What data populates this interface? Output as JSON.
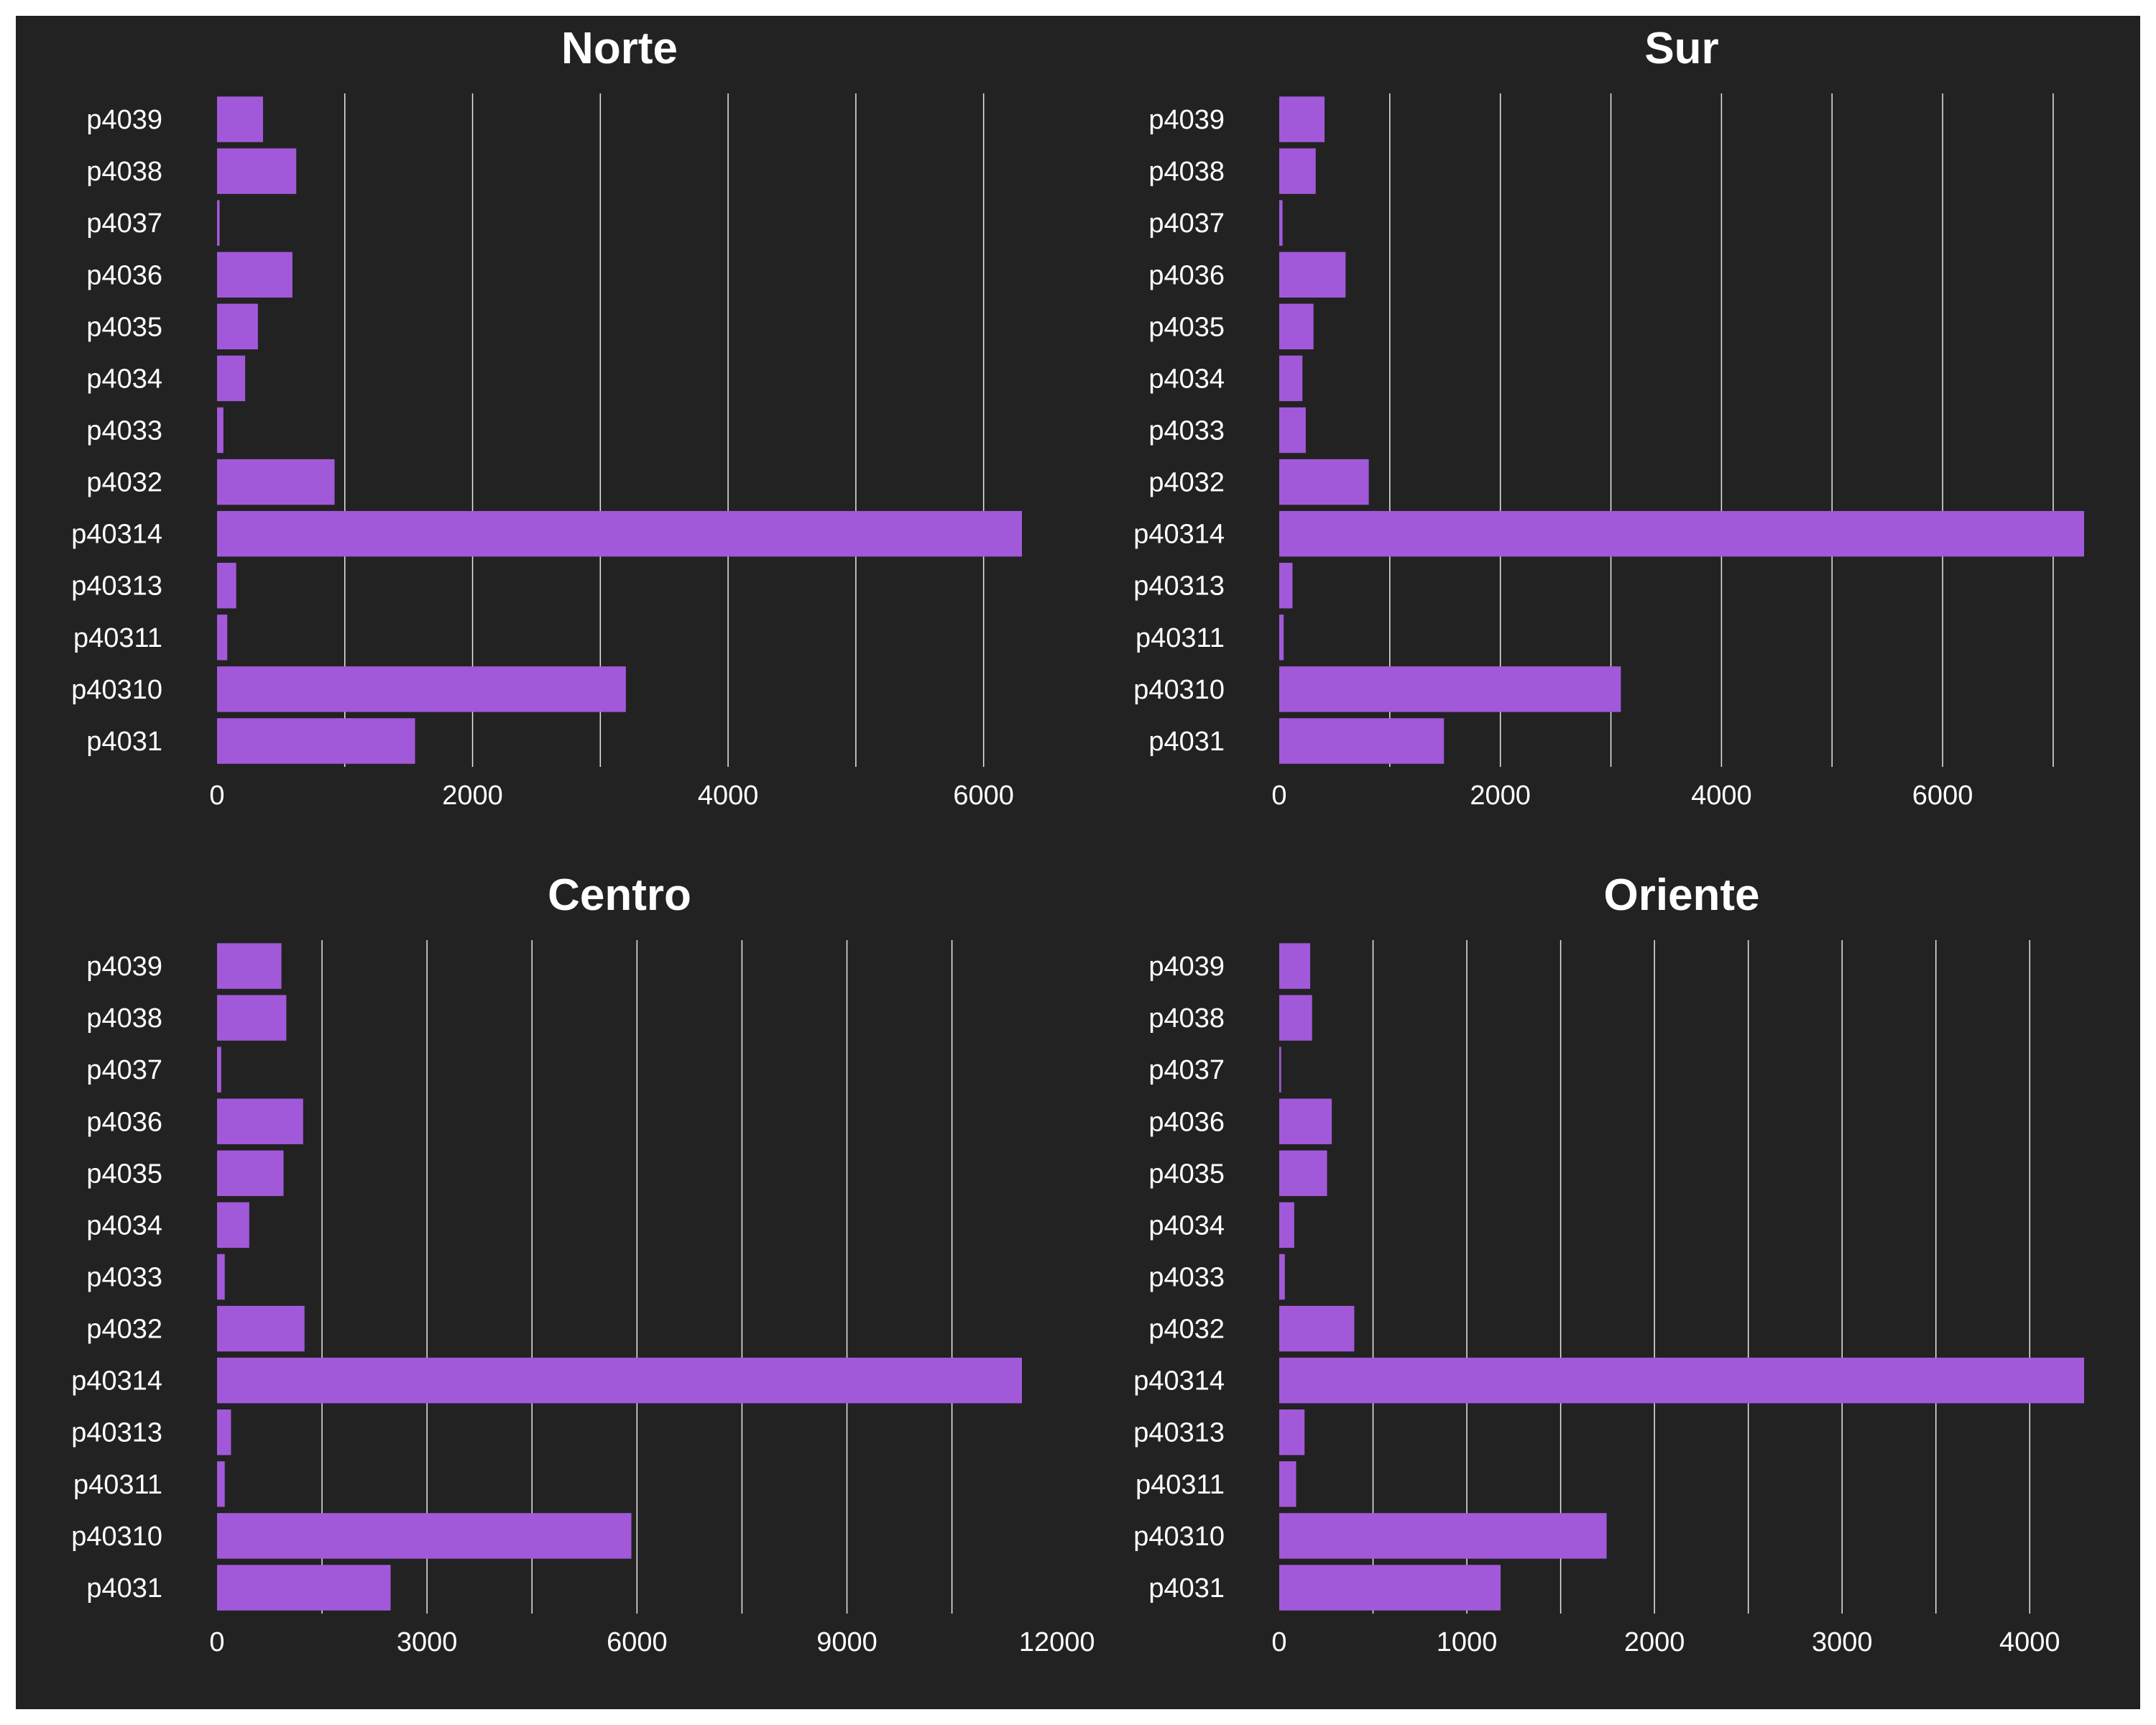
{
  "style": {
    "background": "#222222",
    "bar_color": "#a259d9",
    "grid_color": "#e8e8e8",
    "text_color": "#ffffff"
  },
  "chart_data": [
    {
      "type": "bar",
      "orientation": "horizontal",
      "title": "Norte",
      "categories": [
        "p4039",
        "p4038",
        "p4037",
        "p4036",
        "p4035",
        "p4034",
        "p4033",
        "p4032",
        "p40314",
        "p40313",
        "p40311",
        "p40310",
        "p4031"
      ],
      "values": [
        360,
        620,
        20,
        590,
        320,
        220,
        50,
        920,
        6300,
        150,
        80,
        3200,
        1550
      ],
      "xlim": [
        0,
        6300
      ],
      "xticks": [
        0,
        2000,
        4000,
        6000
      ],
      "xticks_labels": [
        "0",
        "2000",
        "4000",
        "6000"
      ],
      "grid_x": [
        1000,
        3000,
        5000
      ]
    },
    {
      "type": "bar",
      "orientation": "horizontal",
      "title": "Sur",
      "categories": [
        "p4039",
        "p4038",
        "p4037",
        "p4036",
        "p4035",
        "p4034",
        "p4033",
        "p4032",
        "p40314",
        "p40313",
        "p40311",
        "p40310",
        "p4031"
      ],
      "values": [
        410,
        330,
        30,
        600,
        310,
        210,
        240,
        810,
        7280,
        120,
        40,
        3090,
        1490
      ],
      "xlim": [
        0,
        7280
      ],
      "xticks": [
        0,
        2000,
        4000,
        6000
      ],
      "xticks_labels": [
        "0",
        "2000",
        "4000",
        "6000"
      ],
      "grid_x": [
        1000,
        3000,
        5000,
        7000
      ]
    },
    {
      "type": "bar",
      "orientation": "horizontal",
      "title": "Centro",
      "categories": [
        "p4039",
        "p4038",
        "p4037",
        "p4036",
        "p4035",
        "p4034",
        "p4033",
        "p4032",
        "p40314",
        "p40313",
        "p40311",
        "p40310",
        "p4031"
      ],
      "values": [
        920,
        990,
        60,
        1230,
        950,
        460,
        110,
        1250,
        11500,
        200,
        110,
        5920,
        2480
      ],
      "xlim": [
        0,
        11500
      ],
      "xticks": [
        0,
        3000,
        6000,
        9000,
        12000
      ],
      "xticks_labels": [
        "0",
        "3000",
        "6000",
        "9000",
        "12000"
      ],
      "grid_x": [
        1500,
        4500,
        7500,
        10500
      ]
    },
    {
      "type": "bar",
      "orientation": "horizontal",
      "title": "Oriente",
      "categories": [
        "p4039",
        "p4038",
        "p4037",
        "p4036",
        "p4035",
        "p4034",
        "p4033",
        "p4032",
        "p40314",
        "p40313",
        "p40311",
        "p40310",
        "p4031"
      ],
      "values": [
        165,
        175,
        10,
        280,
        255,
        80,
        30,
        400,
        4290,
        135,
        90,
        1745,
        1180
      ],
      "xlim": [
        0,
        4290
      ],
      "xticks": [
        0,
        1000,
        2000,
        3000,
        4000
      ],
      "xticks_labels": [
        "0",
        "1000",
        "2000",
        "3000",
        "4000"
      ],
      "grid_x": [
        500,
        1500,
        2500,
        3500
      ]
    }
  ]
}
